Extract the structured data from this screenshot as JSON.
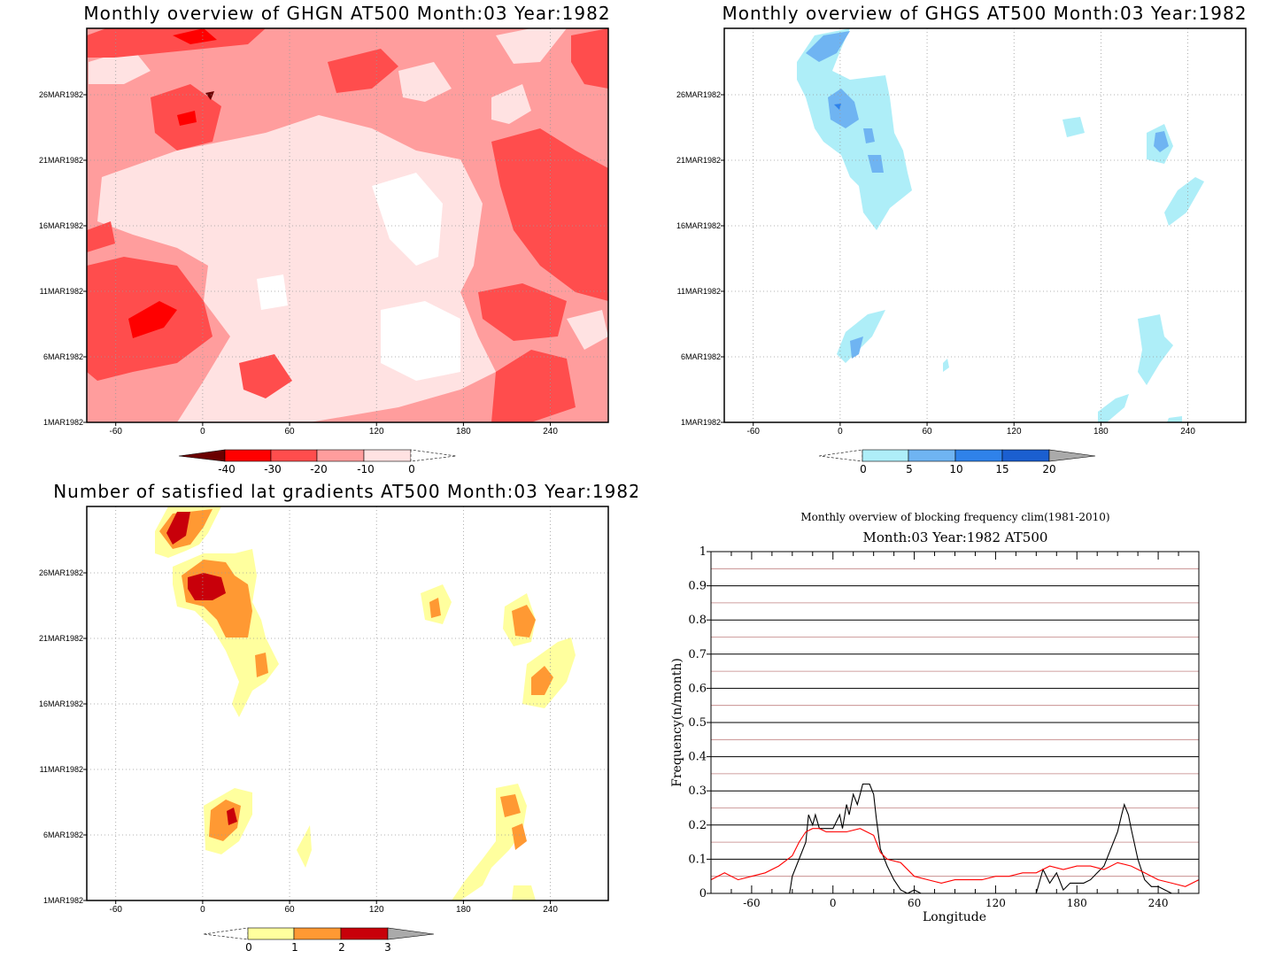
{
  "chart_data": [
    {
      "id": "ghgn",
      "type": "heatmap",
      "title": "Monthly overview of GHGN AT500 Month:03 Year:1982",
      "x_ticks": [
        -60,
        0,
        60,
        120,
        180,
        240
      ],
      "xlim": [
        -80,
        280
      ],
      "y_ticks": [
        "1MAR1982",
        "6MAR1982",
        "11MAR1982",
        "16MAR1982",
        "21MAR1982",
        "26MAR1982"
      ],
      "grid": true,
      "colorbar": {
        "labels": [
          "-40",
          "-30",
          "-20",
          "-10",
          "0"
        ],
        "colors": [
          "#6b0000",
          "#ff0000",
          "#ff4d4d",
          "#ff9d9d",
          "#ffe2e2",
          "#ffffff"
        ]
      }
    },
    {
      "id": "ghgs",
      "type": "heatmap",
      "title": "Monthly overview of GHGS AT500 Month:03 Year:1982",
      "x_ticks": [
        -60,
        0,
        60,
        120,
        180,
        240
      ],
      "xlim": [
        -80,
        280
      ],
      "y_ticks": [
        "1MAR1982",
        "6MAR1982",
        "11MAR1982",
        "16MAR1982",
        "21MAR1982",
        "26MAR1982"
      ],
      "grid": true,
      "colorbar": {
        "labels": [
          "0",
          "5",
          "10",
          "15",
          "20"
        ],
        "colors": [
          "#ffffff",
          "#aeeef8",
          "#6fb4f2",
          "#2f82ea",
          "#1b5fd0",
          "#aaaaaa"
        ]
      }
    },
    {
      "id": "satgrad",
      "type": "heatmap",
      "title": "Number of satisfied lat gradients AT500 Month:03 Year:1982",
      "x_ticks": [
        -60,
        0,
        60,
        120,
        180,
        240
      ],
      "xlim": [
        -80,
        280
      ],
      "y_ticks": [
        "1MAR1982",
        "6MAR1982",
        "11MAR1982",
        "16MAR1982",
        "21MAR1982",
        "26MAR1982"
      ],
      "grid": true,
      "colorbar": {
        "labels": [
          "0",
          "1",
          "2",
          "3"
        ],
        "colors": [
          "#ffffff",
          "#ffff9e",
          "#ff9933",
          "#c8000a",
          "#aaaaaa"
        ]
      }
    },
    {
      "id": "blockfreq",
      "type": "line",
      "title": "Monthly overview of blocking frequency clim(1981-2010)",
      "subtitle": "Month:03 Year:1982  AT500",
      "xlabel": "Longitude",
      "ylabel": "Frequency(n/month)",
      "xlim": [
        -90,
        270
      ],
      "ylim": [
        0,
        1
      ],
      "x_ticks": [
        -60,
        0,
        60,
        120,
        180,
        240
      ],
      "y_ticks": [
        "0",
        "0.1",
        "0.2",
        "0.3",
        "0.4",
        "0.5",
        "0.6",
        "0.7",
        "0.8",
        "0.9",
        "1"
      ],
      "grid": true,
      "series": [
        {
          "color": "#000000",
          "x": [
            -90,
            -32,
            -30,
            -20,
            -18,
            -15,
            -13,
            -10,
            -5,
            0,
            5,
            7,
            10,
            12,
            15,
            18,
            20,
            22,
            25,
            27,
            30,
            32,
            35,
            40,
            45,
            50,
            55,
            60,
            65,
            70,
            150,
            155,
            160,
            165,
            170,
            175,
            180,
            185,
            190,
            195,
            200,
            205,
            210,
            213,
            215,
            218,
            220,
            225,
            230,
            235,
            240,
            245,
            250,
            255,
            270
          ],
          "y": [
            0,
            0,
            0.05,
            0.15,
            0.23,
            0.2,
            0.23,
            0.19,
            0.19,
            0.19,
            0.23,
            0.19,
            0.26,
            0.23,
            0.29,
            0.26,
            0.29,
            0.32,
            0.32,
            0.32,
            0.29,
            0.22,
            0.13,
            0.08,
            0.04,
            0.01,
            0,
            0.01,
            0,
            0,
            0,
            0.07,
            0.03,
            0.06,
            0.01,
            0.03,
            0.03,
            0.03,
            0.04,
            0.06,
            0.08,
            0.13,
            0.18,
            0.23,
            0.26,
            0.23,
            0.19,
            0.1,
            0.04,
            0.02,
            0.02,
            0.01,
            0,
            0,
            0
          ]
        },
        {
          "color": "#ff0000",
          "x": [
            -90,
            -80,
            -70,
            -60,
            -50,
            -40,
            -30,
            -25,
            -20,
            -15,
            -10,
            -5,
            0,
            10,
            20,
            30,
            35,
            40,
            50,
            60,
            70,
            80,
            90,
            100,
            110,
            120,
            130,
            140,
            150,
            160,
            170,
            180,
            190,
            200,
            210,
            220,
            230,
            240,
            250,
            260,
            270
          ],
          "y": [
            0.04,
            0.06,
            0.04,
            0.05,
            0.06,
            0.08,
            0.11,
            0.15,
            0.18,
            0.19,
            0.19,
            0.18,
            0.18,
            0.18,
            0.19,
            0.17,
            0.12,
            0.1,
            0.09,
            0.05,
            0.04,
            0.03,
            0.04,
            0.04,
            0.04,
            0.05,
            0.05,
            0.06,
            0.06,
            0.08,
            0.07,
            0.08,
            0.08,
            0.07,
            0.09,
            0.08,
            0.06,
            0.04,
            0.03,
            0.02,
            0.04
          ]
        }
      ]
    }
  ]
}
